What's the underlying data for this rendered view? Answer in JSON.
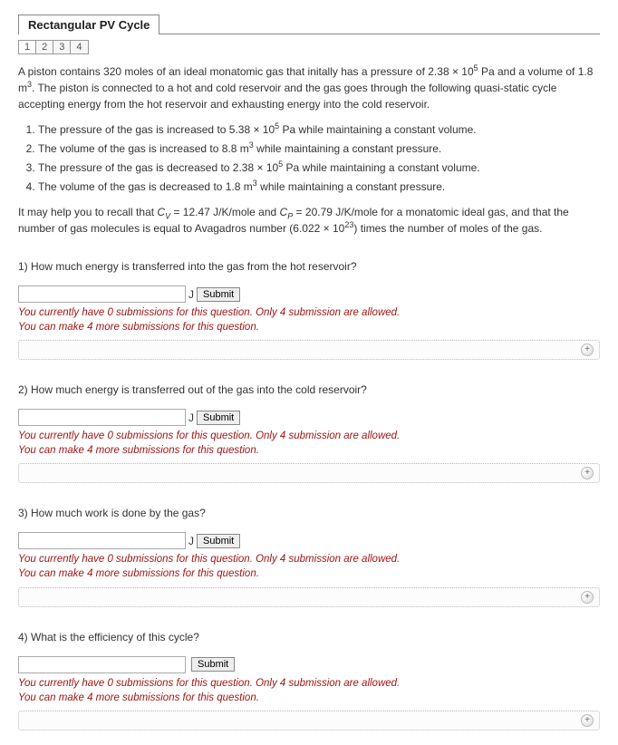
{
  "title": "Rectangular PV Cycle",
  "tabs": [
    "1",
    "2",
    "3",
    "4"
  ],
  "intro": {
    "line1_a": "A piston contains 320 moles of an ideal monatomic gas that initally has a pressure of 2.38 × 10",
    "line1_sup": "5",
    "line1_b": " Pa and a volume of 1.8 m",
    "line1_sup2": "3",
    "line1_c": ". The piston is connected to a hot and cold reservoir and the gas goes through the following quasi-static cycle accepting energy from the hot reservoir and exhausting energy into the cold reservoir."
  },
  "steps": [
    {
      "a": "The pressure of the gas is increased to 5.38 × 10",
      "sup": "5",
      "b": " Pa while maintaining a constant volume."
    },
    {
      "a": "The volume of the gas is increased to 8.8 m",
      "sup": "3",
      "b": " while maintaining a constant pressure."
    },
    {
      "a": "The pressure of the gas is decreased to 2.38 × 10",
      "sup": "5",
      "b": " Pa while maintaining a constant volume."
    },
    {
      "a": "The volume of the gas is decreased to 1.8 m",
      "sup": "3",
      "b": " while maintaining a constant pressure."
    }
  ],
  "help": {
    "a": "It may help you to recall that ",
    "cv": "C",
    "cv_sub": "V",
    "cv_val": " = 12.47 J/K/mole and ",
    "cp": "C",
    "cp_sub": "P",
    "cp_val": " = 20.79 J/K/mole for a monatomic ideal gas, and that the number of gas molecules is equal to Avagadros number (6.022 × 10",
    "help_sup": "23",
    "b": ") times the number of moles of the gas."
  },
  "questions": [
    {
      "text": "1) How much energy is transferred into the gas from the hot reservoir?",
      "unit": "J"
    },
    {
      "text": "2) How much energy is transferred out of the gas into the cold reservoir?",
      "unit": "J"
    },
    {
      "text": "3) How much work is done by the gas?",
      "unit": "J"
    },
    {
      "text": "4) What is the efficiency of this cycle?",
      "unit": ""
    }
  ],
  "submit_label": "Submit",
  "feedback_line1": "You currently have 0 submissions for this question. Only 4 submission are allowed.",
  "feedback_line2": "You can make 4 more submissions for this question."
}
